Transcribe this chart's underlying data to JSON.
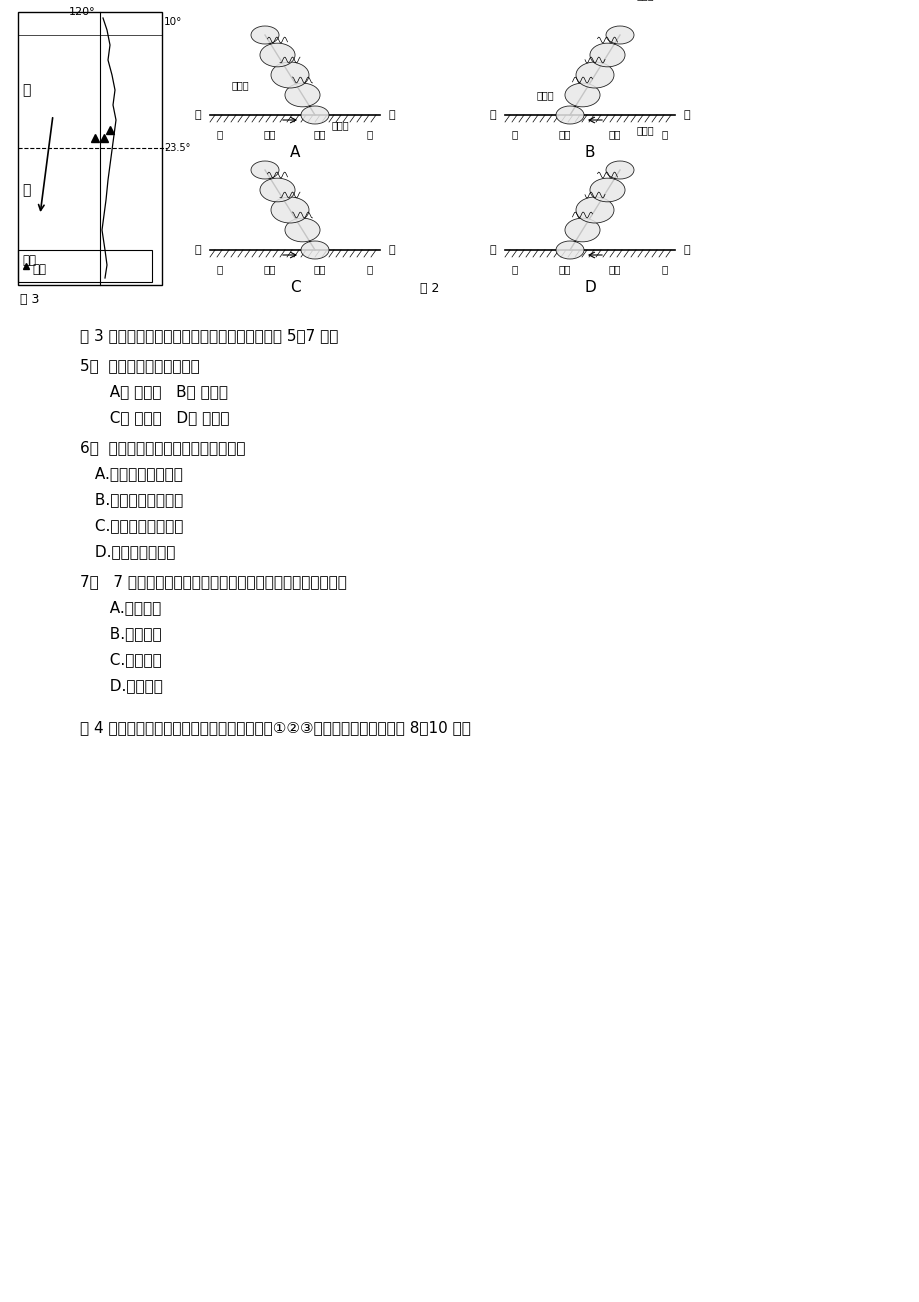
{
  "bg_color": "#ffffff",
  "text_color": "#000000",
  "intro_q5_7": "图 3 所示区域是我国重要的铁矿石进口地。回答 5％7 题。",
  "q5": "5．  图中洋流所在的大洋为",
  "q5_AB": "  A． 太平洋   B． 大西洋",
  "q5_CD": "  C． 印度洋   D． 北冰洋",
  "q6": "6．  图中洋流对相邻陆地环境的影响是",
  "q6_A": " A.增加了湿、热程度",
  "q6_B": " B.降低了干、热程度",
  "q6_C": " C.减轻了寒冷的状况",
  "q6_D": " D.加剧了干燥状况",
  "q7": "7．   7 月份将该地铁矿石运往上海，货轮在航行过程中总体上",
  "q7_A": "  A.顺风顺水",
  "q7_B": "  B.顺风逆水",
  "q7_C": "  C.逆风顺水",
  "q7_D": "  D.逆风逆水",
  "intro_q8_10": "图 4 为水循环和岩石圈物质循环示意图，其中①②③代表三大类岩石。回答 8％10 题。"
}
